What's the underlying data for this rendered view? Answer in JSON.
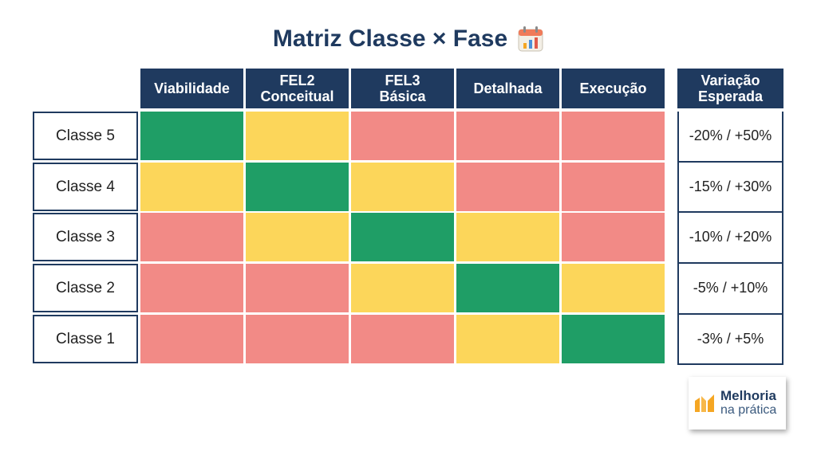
{
  "title": "Matriz Classe × Fase",
  "title_icon": "calendar-chart-icon",
  "columns": [
    "Viabilidade",
    "FEL2\nConceitual",
    "FEL3\nBásica",
    "Detalhada",
    "Execução"
  ],
  "variation_header": "Variação\nEsperada",
  "colors": {
    "green": "#1f9e66",
    "yellow": "#fcd65a",
    "red": "#f28a86",
    "navy": "#1f3a5f",
    "orange": "#f5a623"
  },
  "chart_data": {
    "type": "heatmap",
    "title": "Matriz Classe × Fase",
    "x": [
      "Viabilidade",
      "FEL2 Conceitual",
      "FEL3 Básica",
      "Detalhada",
      "Execução"
    ],
    "y": [
      "Classe 5",
      "Classe 4",
      "Classe 3",
      "Classe 2",
      "Classe 1"
    ],
    "values": [
      [
        "green",
        "yellow",
        "red",
        "red",
        "red"
      ],
      [
        "yellow",
        "green",
        "yellow",
        "red",
        "red"
      ],
      [
        "red",
        "yellow",
        "green",
        "yellow",
        "red"
      ],
      [
        "red",
        "red",
        "yellow",
        "green",
        "yellow"
      ],
      [
        "red",
        "red",
        "red",
        "yellow",
        "green"
      ]
    ],
    "variation": [
      "-20% / +50%",
      "-15% / +30%",
      "-10% / +20%",
      "-5% / +10%",
      "-3% / +5%"
    ]
  },
  "logo": {
    "line1": "Melhoria",
    "line2": "na prática",
    "icon": "bar-chart-logo-icon"
  }
}
